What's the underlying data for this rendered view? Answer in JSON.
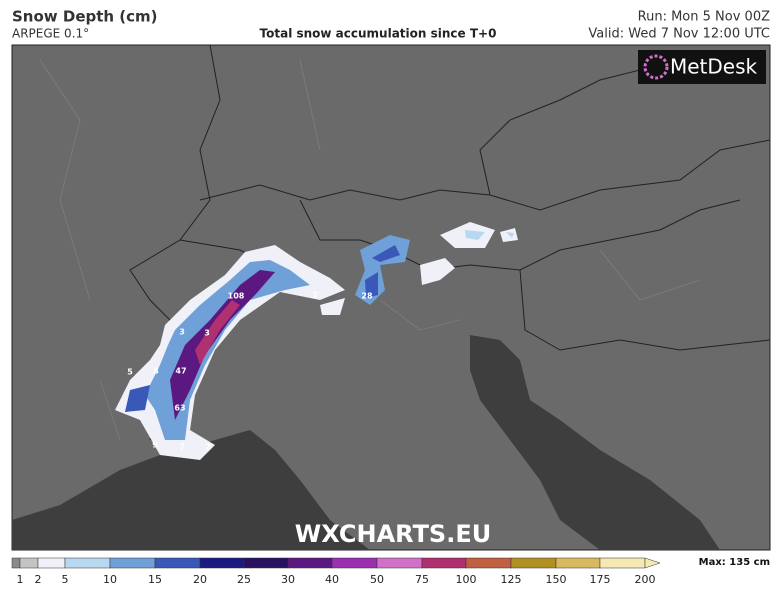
{
  "header": {
    "title": "Snow Depth (cm)",
    "model": "ARPEGE 0.1°",
    "subtitle": "Total snow accumulation since T+0",
    "run": "Run: Mon 5 Nov 00Z",
    "valid": "Valid: Wed 7 Nov 12:00 UTC"
  },
  "logo": "MetDesk",
  "watermark": "WXCHARTS.EU",
  "spot_values": [
    108,
    2,
    28,
    3,
    3,
    5,
    8,
    47,
    63,
    9,
    7,
    2
  ],
  "legend": {
    "ticks": [
      1,
      2,
      5,
      10,
      15,
      20,
      25,
      30,
      40,
      50,
      75,
      100,
      125,
      150,
      175,
      200
    ],
    "colors": [
      "#8a8a8a",
      "#c4c4c4",
      "#f0f0f8",
      "#b8d8f0",
      "#6fa0d8",
      "#3a58b8",
      "#1a1a80",
      "#2a1060",
      "#5a1880",
      "#9a30b0",
      "#d070c8",
      "#b03070",
      "#c06040",
      "#b09020",
      "#d8b860",
      "#f5e8b0"
    ],
    "max": "Max: 135 cm"
  }
}
